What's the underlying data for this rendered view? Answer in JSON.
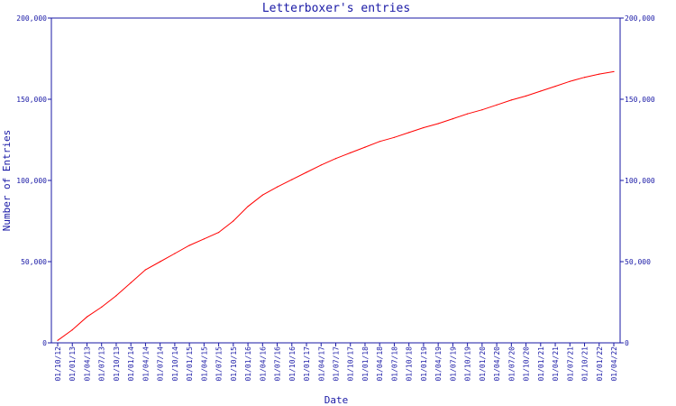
{
  "chart_data": {
    "type": "line",
    "title": "Letterboxer's entries",
    "xlabel": "Date",
    "ylabel": "Number of Entries",
    "ylim": [
      0,
      200000
    ],
    "y_ticks": [
      {
        "value": 0,
        "label": "0"
      },
      {
        "value": 50000,
        "label": "50,000"
      },
      {
        "value": 100000,
        "label": "100,000"
      },
      {
        "value": 150000,
        "label": "150,000"
      },
      {
        "value": 200000,
        "label": "200,000"
      }
    ],
    "x_ticks": [
      "01/10/12",
      "01/01/13",
      "01/04/13",
      "01/07/13",
      "01/10/13",
      "01/01/14",
      "01/04/14",
      "01/07/14",
      "01/10/14",
      "01/01/15",
      "01/04/15",
      "01/07/15",
      "01/10/15",
      "01/01/16",
      "01/04/16",
      "01/07/16",
      "01/10/16",
      "01/01/17",
      "01/04/17",
      "01/07/17",
      "01/10/17",
      "01/01/18",
      "01/04/18",
      "01/07/18",
      "01/10/18",
      "01/01/19",
      "01/04/19",
      "01/07/19",
      "01/10/19",
      "01/01/20",
      "01/04/20",
      "01/07/20",
      "01/10/20",
      "01/01/21",
      "01/04/21",
      "01/07/21",
      "01/10/21",
      "01/01/22",
      "01/04/22"
    ],
    "grid": false,
    "series": [
      {
        "color": "#ff0000",
        "x": [
          "01/10/12",
          "01/01/13",
          "01/04/13",
          "01/07/13",
          "01/10/13",
          "01/01/14",
          "01/04/14",
          "01/07/14",
          "01/10/14",
          "01/01/15",
          "01/04/15",
          "01/07/15",
          "01/10/15",
          "01/01/16",
          "01/04/16",
          "01/07/16",
          "01/10/16",
          "01/01/17",
          "01/04/17",
          "01/07/17",
          "01/10/17",
          "01/01/18",
          "01/04/18",
          "01/07/18",
          "01/10/18",
          "01/01/19",
          "01/04/19",
          "01/07/19",
          "01/10/19",
          "01/01/20",
          "01/04/20",
          "01/07/20",
          "01/10/20",
          "01/01/21",
          "01/04/21",
          "01/07/21",
          "01/10/21",
          "01/01/22",
          "01/04/22"
        ],
        "values": [
          1500,
          8000,
          16000,
          22000,
          29000,
          37000,
          45000,
          50000,
          55000,
          60000,
          64000,
          68000,
          75000,
          84000,
          91000,
          96000,
          100500,
          105000,
          109500,
          113500,
          117000,
          120500,
          124000,
          126500,
          129500,
          132500,
          135000,
          138000,
          141000,
          143500,
          146500,
          149500,
          152000,
          155000,
          158000,
          161000,
          163500,
          165500,
          167000
        ]
      }
    ]
  }
}
